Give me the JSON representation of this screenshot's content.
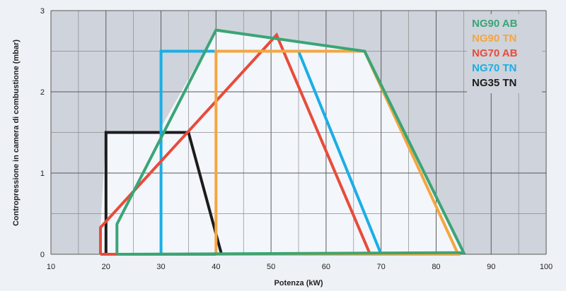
{
  "chart_data": {
    "type": "line",
    "title": "",
    "xlabel": "Potenza (kW)",
    "ylabel": "Contropressione in camera di combustione (mbar)",
    "xlim": [
      10,
      100
    ],
    "ylim": [
      0,
      3
    ],
    "x_ticks": [
      10,
      20,
      30,
      40,
      50,
      60,
      70,
      80,
      90,
      100
    ],
    "y_ticks": [
      0,
      1,
      2,
      3
    ],
    "grid": true,
    "grid_minor_x_step": 5,
    "grid_minor_y_step": 0.5,
    "legend_position": "top-right",
    "series": [
      {
        "name": "NG90 AB",
        "color": "#3aa576",
        "points": [
          [
            22,
            0
          ],
          [
            22,
            0.37
          ],
          [
            40,
            2.76
          ],
          [
            67,
            2.5
          ],
          [
            85,
            0.02
          ],
          [
            22,
            0
          ]
        ]
      },
      {
        "name": "NG90 TN",
        "color": "#f4a640",
        "points": [
          [
            40,
            0
          ],
          [
            40,
            2.5
          ],
          [
            67,
            2.5
          ],
          [
            84,
            0
          ],
          [
            40,
            0
          ]
        ]
      },
      {
        "name": "NG70 AB",
        "color": "#e84b3a",
        "points": [
          [
            19,
            0
          ],
          [
            19,
            0.33
          ],
          [
            51,
            2.7
          ],
          [
            68,
            0
          ],
          [
            19,
            0
          ]
        ]
      },
      {
        "name": "NG70 TN",
        "color": "#1aaee5",
        "points": [
          [
            30,
            0
          ],
          [
            30,
            2.5
          ],
          [
            55,
            2.5
          ],
          [
            70,
            0
          ],
          [
            30,
            0
          ]
        ]
      },
      {
        "name": "NG35 TN",
        "color": "#1c1c1c",
        "points": [
          [
            20,
            0
          ],
          [
            20,
            1.5
          ],
          [
            35,
            1.5
          ],
          [
            41,
            0
          ],
          [
            20,
            0
          ]
        ]
      }
    ],
    "draw_order": [
      "NG35 TN",
      "NG70 TN",
      "NG70 AB",
      "NG90 TN",
      "NG90 AB"
    ]
  }
}
